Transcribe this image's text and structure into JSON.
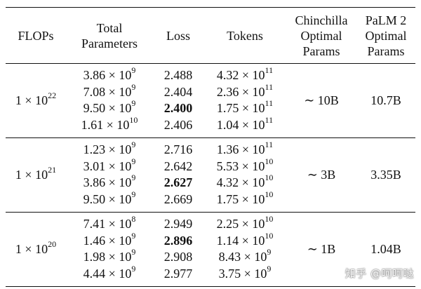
{
  "table": {
    "headers": {
      "flops": [
        "FLOPs"
      ],
      "total_parameters": [
        "Total",
        "Parameters"
      ],
      "loss": [
        "Loss"
      ],
      "tokens": [
        "Tokens"
      ],
      "chinchilla": [
        "Chinchilla",
        "Optimal",
        "Params"
      ],
      "palm2": [
        "PaLM 2",
        "Optimal",
        "Params"
      ]
    },
    "groups": [
      {
        "flops_mantissa": "1 × 10",
        "flops_exp": "22",
        "rows": [
          {
            "params_m": "3.86 × 10",
            "params_e": "9",
            "loss": "2.488",
            "bold": false,
            "tokens_m": "4.32 × 10",
            "tokens_e": "11"
          },
          {
            "params_m": "7.08 × 10",
            "params_e": "9",
            "loss": "2.404",
            "bold": false,
            "tokens_m": "2.36 × 10",
            "tokens_e": "11"
          },
          {
            "params_m": "9.50 × 10",
            "params_e": "9",
            "loss": "2.400",
            "bold": true,
            "tokens_m": "1.75 × 10",
            "tokens_e": "11"
          },
          {
            "params_m": "1.61 × 10",
            "params_e": "10",
            "loss": "2.406",
            "bold": false,
            "tokens_m": "1.04 × 10",
            "tokens_e": "11"
          }
        ],
        "chinchilla": "∼ 10B",
        "palm2": "10.7B"
      },
      {
        "flops_mantissa": "1 × 10",
        "flops_exp": "21",
        "rows": [
          {
            "params_m": "1.23 × 10",
            "params_e": "9",
            "loss": "2.716",
            "bold": false,
            "tokens_m": "1.36 × 10",
            "tokens_e": "11"
          },
          {
            "params_m": "3.01 × 10",
            "params_e": "9",
            "loss": "2.642",
            "bold": false,
            "tokens_m": "5.53 × 10",
            "tokens_e": "10"
          },
          {
            "params_m": "3.86 × 10",
            "params_e": "9",
            "loss": "2.627",
            "bold": true,
            "tokens_m": "4.32 × 10",
            "tokens_e": "10"
          },
          {
            "params_m": "9.50 × 10",
            "params_e": "9",
            "loss": "2.669",
            "bold": false,
            "tokens_m": "1.75 × 10",
            "tokens_e": "10"
          }
        ],
        "chinchilla": "∼ 3B",
        "palm2": "3.35B"
      },
      {
        "flops_mantissa": "1 × 10",
        "flops_exp": "20",
        "rows": [
          {
            "params_m": "7.41 × 10",
            "params_e": "8",
            "loss": "2.949",
            "bold": false,
            "tokens_m": "2.25 × 10",
            "tokens_e": "10"
          },
          {
            "params_m": "1.46 × 10",
            "params_e": "9",
            "loss": "2.896",
            "bold": true,
            "tokens_m": "1.14 × 10",
            "tokens_e": "10"
          },
          {
            "params_m": "1.98 × 10",
            "params_e": "9",
            "loss": "2.908",
            "bold": false,
            "tokens_m": "8.43 × 10",
            "tokens_e": "9"
          },
          {
            "params_m": "4.44 × 10",
            "params_e": "9",
            "loss": "2.977",
            "bold": false,
            "tokens_m": "3.75 × 10",
            "tokens_e": "9"
          }
        ],
        "chinchilla": "∼ 1B",
        "palm2": "1.04B"
      }
    ]
  },
  "watermark": "知乎 @呵呵哒"
}
